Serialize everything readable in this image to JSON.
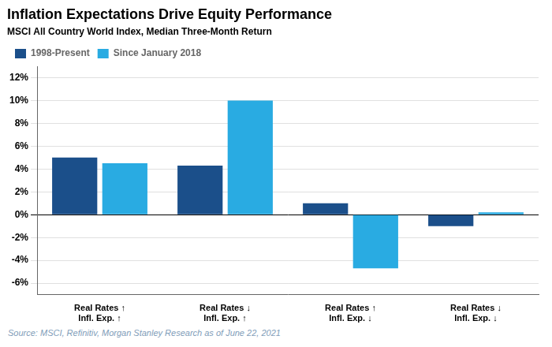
{
  "chart_data": {
    "type": "bar",
    "title": "Inflation Expectations Drive Equity Performance",
    "subtitle": "MSCI All Country World Index, Median Three-Month Return",
    "categories": [
      "Real Rates ↑\nInfl. Exp. ↑",
      "Real Rates ↓\nInfl. Exp. ↑",
      "Real Rates ↑\nInfl. Exp. ↓",
      "Real Rates ↓\nInfl. Exp. ↓"
    ],
    "series": [
      {
        "name": "1998-Present",
        "color": "#1b4f8a",
        "values": [
          5.0,
          4.3,
          1.0,
          -1.0
        ]
      },
      {
        "name": "Since January 2018",
        "color": "#29abe2",
        "values": [
          4.5,
          10.0,
          -4.7,
          0.2
        ]
      }
    ],
    "ylim": [
      -7,
      13
    ],
    "yticks": [
      {
        "value": -6,
        "label": "-6%"
      },
      {
        "value": -4,
        "label": "-4%"
      },
      {
        "value": -2,
        "label": "-2%"
      },
      {
        "value": 0,
        "label": "0%"
      },
      {
        "value": 2,
        "label": "2%"
      },
      {
        "value": 4,
        "label": "4%"
      },
      {
        "value": 6,
        "label": "6%"
      },
      {
        "value": 8,
        "label": "8%"
      },
      {
        "value": 10,
        "label": "10%"
      },
      {
        "value": 12,
        "label": "12%"
      }
    ],
    "grid": true,
    "legend": "top left",
    "source": "Source: MSCI, Refinitiv, Morgan Stanley Research as of June 22, 2021"
  }
}
